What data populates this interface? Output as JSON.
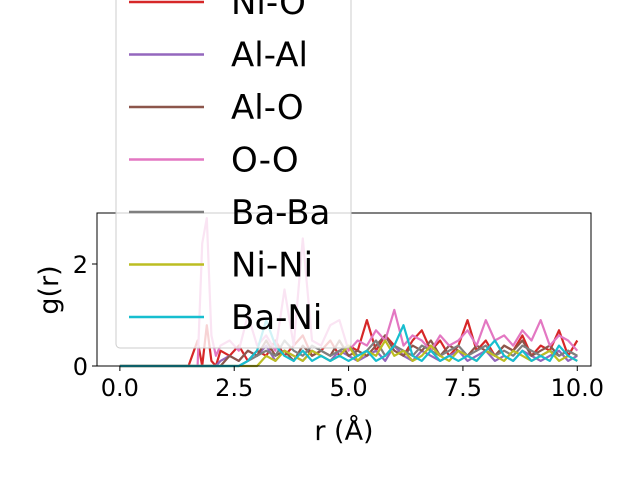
{
  "chart_data": {
    "type": "line",
    "title": "",
    "xlabel": "r (Å)",
    "ylabel": "g(r)",
    "xlim": [
      -0.5,
      10.3
    ],
    "ylim": [
      0,
      3.0
    ],
    "xticks": [
      0.0,
      2.5,
      5.0,
      7.5,
      10.0
    ],
    "xtick_labels": [
      "0.0",
      "2.5",
      "5.0",
      "7.5",
      "10.0"
    ],
    "yticks": [
      0,
      2
    ],
    "ytick_labels": [
      "0",
      "2"
    ],
    "grid": false,
    "legend_placement": "upper left, overflowing above the axes",
    "x": [
      0.0,
      0.5,
      1.0,
      1.5,
      1.7,
      1.8,
      1.9,
      2.0,
      2.1,
      2.2,
      2.4,
      2.6,
      2.8,
      3.0,
      3.2,
      3.4,
      3.6,
      3.8,
      4.0,
      4.2,
      4.4,
      4.6,
      4.8,
      5.0,
      5.2,
      5.4,
      5.6,
      5.8,
      6.0,
      6.2,
      6.4,
      6.6,
      6.8,
      7.0,
      7.2,
      7.4,
      7.6,
      7.8,
      8.0,
      8.2,
      8.4,
      8.6,
      8.8,
      9.0,
      9.2,
      9.4,
      9.6,
      9.8,
      10.0
    ],
    "series": [
      {
        "name": "Ni-O",
        "color": "#d62728",
        "values": [
          0,
          0,
          0,
          0,
          0.5,
          0,
          0.8,
          0.1,
          0,
          0.3,
          0.2,
          0.4,
          0.1,
          0.3,
          0.2,
          0.5,
          0.2,
          0.4,
          0.6,
          0.2,
          0.3,
          0.5,
          0.2,
          0.4,
          0.3,
          0.9,
          0.3,
          0.6,
          0.4,
          0.2,
          0.5,
          0.7,
          0.3,
          0.5,
          0.2,
          0.4,
          0.9,
          0.3,
          0.5,
          0.2,
          0.4,
          0.3,
          0.6,
          0.2,
          0.4,
          0.3,
          0.7,
          0.2,
          0.5
        ]
      },
      {
        "name": "Al-Al",
        "color": "#9467bd",
        "values": [
          0,
          0,
          0,
          0,
          0,
          0,
          0,
          0,
          0,
          0.1,
          0.2,
          0.1,
          0.3,
          0.2,
          0.4,
          0.1,
          0.3,
          0.2,
          0.1,
          0.3,
          0.2,
          0.1,
          0.3,
          0.2,
          0.1,
          0.2,
          0.3,
          0.1,
          0.4,
          0.2,
          0.1,
          0.3,
          0.2,
          0.1,
          0.2,
          0.3,
          0.1,
          0.2,
          0.3,
          0.1,
          0.2,
          0.1,
          0.3,
          0.2,
          0.1,
          0.2,
          0.3,
          0.1,
          0.2
        ]
      },
      {
        "name": "Al-O",
        "color": "#8c564b",
        "values": [
          0,
          0,
          0,
          0,
          0,
          0,
          0,
          0,
          0,
          0,
          0.2,
          0.1,
          0.3,
          0.2,
          0.5,
          0.2,
          0.3,
          0.1,
          0.4,
          0.2,
          0.3,
          0.2,
          0.5,
          0.2,
          0.3,
          0.2,
          0.4,
          0.6,
          0.3,
          0.2,
          0.4,
          0.3,
          0.5,
          0.2,
          0.4,
          0.3,
          0.2,
          0.4,
          0.3,
          0.2,
          0.4,
          0.3,
          0.5,
          0.2,
          0.3,
          0.4,
          0.2,
          0.3,
          0.2
        ]
      },
      {
        "name": "O-O",
        "color": "#e377c2",
        "values": [
          0,
          0,
          0,
          0,
          0,
          2.4,
          2.9,
          0.6,
          0.2,
          0.4,
          0.5,
          0.3,
          1.0,
          0.4,
          0.6,
          0.3,
          1.5,
          0.4,
          2.5,
          0.5,
          0.4,
          0.8,
          0.9,
          0.3,
          0.5,
          0.4,
          0.7,
          0.5,
          1.1,
          0.4,
          0.6,
          0.5,
          0.3,
          0.6,
          0.4,
          0.5,
          0.7,
          0.4,
          0.9,
          0.5,
          0.6,
          0.4,
          0.7,
          0.5,
          0.9,
          0.4,
          0.6,
          0.5,
          0.3
        ]
      },
      {
        "name": "Ba-Ba",
        "color": "#7f7f7f",
        "values": [
          0,
          0,
          0,
          0,
          0,
          0,
          0,
          0,
          0,
          0,
          0,
          0,
          0.1,
          0.2,
          0.3,
          0.2,
          0.5,
          0.3,
          0.2,
          0.4,
          0.3,
          0.2,
          0.3,
          0.4,
          0.2,
          0.3,
          0.5,
          0.2,
          0.4,
          0.3,
          0.2,
          0.4,
          0.3,
          0.2,
          0.3,
          0.4,
          0.2,
          0.3,
          0.4,
          0.2,
          0.3,
          0.2,
          0.4,
          0.3,
          0.2,
          0.3,
          0.2,
          0.3,
          0.2
        ]
      },
      {
        "name": "Ni-Ni",
        "color": "#bcbd22",
        "values": [
          0,
          0,
          0,
          0,
          0,
          0,
          0,
          0,
          0,
          0,
          0,
          0,
          0,
          0,
          0.2,
          0.1,
          0.3,
          0.2,
          0.1,
          0.3,
          0.2,
          0.1,
          0.2,
          0.4,
          0.1,
          0.3,
          0.2,
          0.5,
          0.2,
          0.3,
          0.1,
          0.2,
          0.4,
          0.2,
          0.1,
          0.3,
          0.2,
          0.1,
          0.3,
          0.2,
          0.1,
          0.3,
          0.2,
          0.1,
          0.2,
          0.3,
          0.1,
          0.2,
          0.1
        ]
      },
      {
        "name": "Ba-Ni",
        "color": "#17becf",
        "values": [
          0,
          0,
          0,
          0,
          0,
          0,
          0,
          0,
          0,
          0,
          0,
          0,
          0.1,
          0.3,
          0.9,
          0.4,
          0.2,
          0.1,
          0.3,
          0.1,
          0.2,
          0.1,
          0.2,
          0.1,
          0.2,
          0.3,
          0.1,
          0.2,
          0.4,
          0.8,
          0.2,
          0.1,
          0.3,
          0.1,
          0.2,
          0.1,
          0.2,
          0.1,
          0.3,
          0.5,
          0.2,
          0.1,
          0.3,
          0.1,
          0.2,
          0.1,
          0.4,
          0.2,
          0.1
        ]
      }
    ],
    "legend_visible_entries": [
      "Ni-O",
      "Al-Al",
      "Al-O",
      "O-O",
      "Ba-Ba",
      "Ni-Ni",
      "Ba-Ni"
    ]
  }
}
